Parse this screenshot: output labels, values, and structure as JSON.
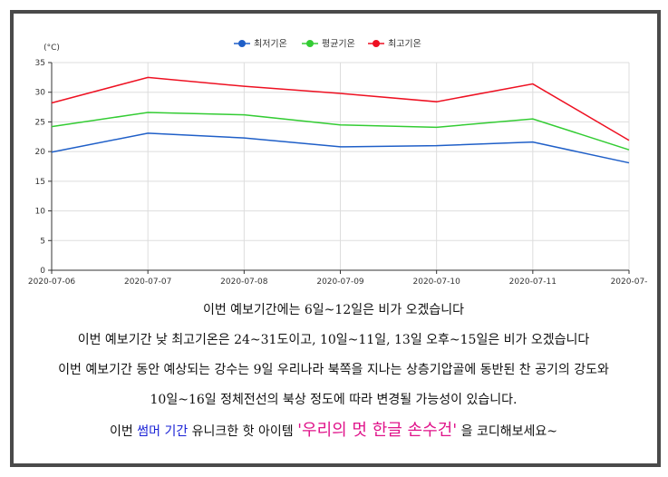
{
  "chart_data": {
    "type": "line",
    "unit_label": "(°C)",
    "x": [
      "2020-07-06",
      "2020-07-07",
      "2020-07-08",
      "2020-07-09",
      "2020-07-10",
      "2020-07-11",
      "2020-07-"
    ],
    "series": [
      {
        "name": "최저기온",
        "color": "#1f5fc8",
        "values": [
          19.9,
          23.1,
          22.3,
          20.8,
          21.0,
          21.6,
          18.1
        ]
      },
      {
        "name": "평균기온",
        "color": "#33cc33",
        "values": [
          24.2,
          26.6,
          26.2,
          24.5,
          24.1,
          25.5,
          20.3
        ]
      },
      {
        "name": "최고기온",
        "color": "#ee1122",
        "values": [
          28.2,
          32.5,
          31.0,
          29.8,
          28.4,
          31.4,
          21.9
        ]
      }
    ],
    "yticks": [
      0,
      5,
      10,
      15,
      20,
      25,
      30,
      35
    ],
    "ylim": [
      0,
      35
    ],
    "grid": true,
    "legend_position": "top-center"
  },
  "text": {
    "line1": "이번 예보기간에는 6일~12일은 비가 오겠습니다",
    "line2": "이번 예보기간 낮 최고기온은 24~31도이고, 10일~11일, 13일 오후~15일은 비가 오겠습니다",
    "line3": "이번 예보기간 동안 예상되는 강수는 9일 우리나라 북쪽을 지나는 상층기압골에 동반된 찬 공기의 강도와",
    "line4": "10일~16일 정체전선의 북상 정도에 따라 변경될 가능성이 있습니다.",
    "line5_a": "이번 ",
    "line5_b": "썸머 기간",
    "line5_c": " 유니크한 핫 아이템 ",
    "line5_d": "'우리의 멋 한글 손수건'",
    "line5_e": " 을 코디해보세요~"
  }
}
